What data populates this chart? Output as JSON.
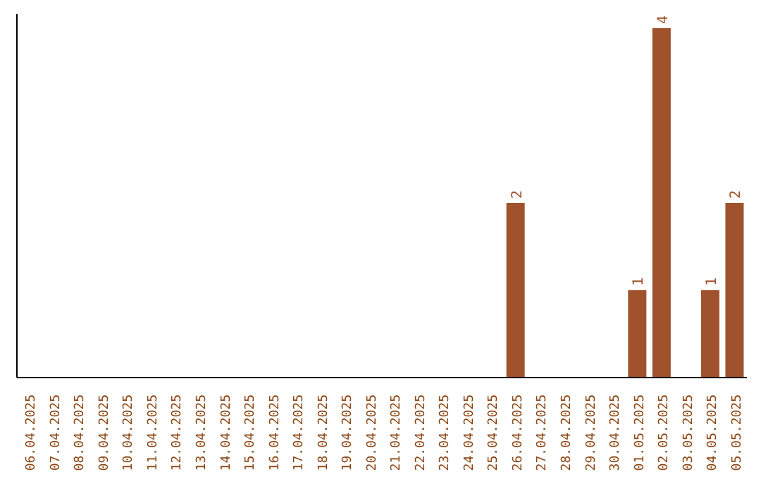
{
  "chart_data": {
    "type": "bar",
    "categories": [
      "06.04.2025",
      "07.04.2025",
      "08.04.2025",
      "09.04.2025",
      "10.04.2025",
      "11.04.2025",
      "12.04.2025",
      "13.04.2025",
      "14.04.2025",
      "15.04.2025",
      "16.04.2025",
      "17.04.2025",
      "18.04.2025",
      "19.04.2025",
      "20.04.2025",
      "21.04.2025",
      "22.04.2025",
      "23.04.2025",
      "24.04.2025",
      "25.04.2025",
      "26.04.2025",
      "27.04.2025",
      "28.04.2025",
      "29.04.2025",
      "30.04.2025",
      "01.05.2025",
      "02.05.2025",
      "03.05.2025",
      "04.05.2025",
      "05.05.2025"
    ],
    "values": [
      null,
      null,
      null,
      null,
      null,
      null,
      null,
      null,
      null,
      null,
      null,
      null,
      null,
      null,
      null,
      null,
      null,
      null,
      null,
      null,
      2,
      null,
      null,
      null,
      null,
      1,
      4,
      null,
      1,
      2
    ],
    "data_labels": true,
    "color": "#a0522d",
    "grid": false
  }
}
